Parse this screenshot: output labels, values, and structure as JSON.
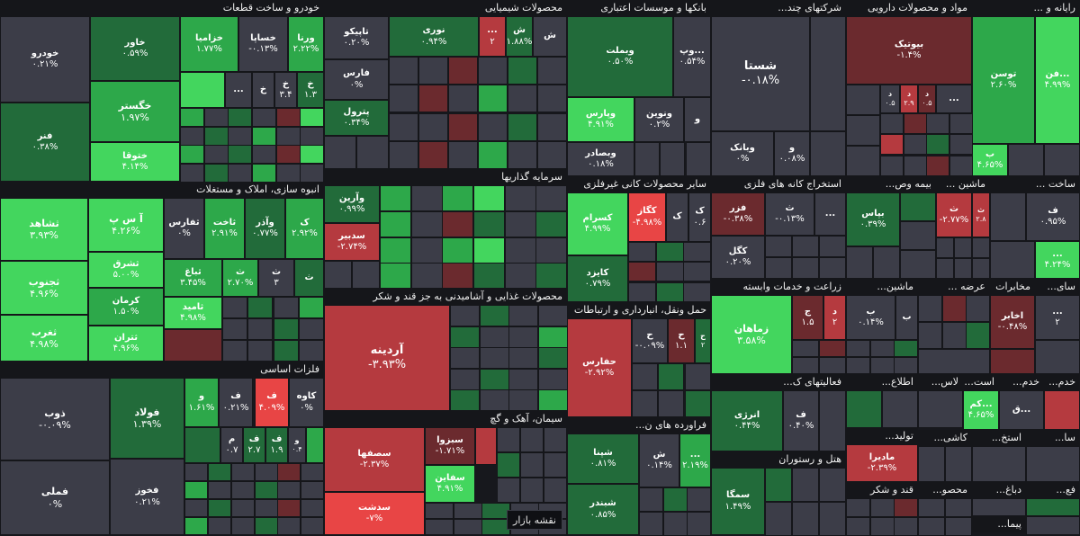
{
  "badge": "نقشه بازار",
  "palette": {
    "neutral": "#3c3d48",
    "up1": "#226b3a",
    "up2": "#2da84a",
    "up3": "#43d65e",
    "dn1": "#6b2a2e",
    "dn2": "#b53a3f",
    "dn3": "#e84545"
  },
  "chart_data": {
    "type": "treemap",
    "sectors": [
      {
        "name": "خودرو و ساخت قطعات",
        "tiles": [
          {
            "symbol": "خودرو",
            "change": "۰.۲۱%",
            "value": 0.21
          },
          {
            "symbol": "فنر",
            "change": "۰.۳۸%",
            "value": 0.38
          },
          {
            "symbol": "خاور",
            "change": "۰.۵۹%",
            "value": 0.59
          },
          {
            "symbol": "خگستر",
            "change": "۱.۹۷%",
            "value": 1.97
          },
          {
            "symbol": "ختوقا",
            "change": "۴.۱۴%",
            "value": 4.14
          },
          {
            "symbol": "خزامیا",
            "change": "۱.۷۷%",
            "value": 1.77
          },
          {
            "symbol": "خساپا",
            "change": "-۰.۱۳%",
            "value": -0.13
          },
          {
            "symbol": "ورنا",
            "change": "۲.۲۲%",
            "value": 2.22
          }
        ]
      },
      {
        "name": "انبوه سازی، املاک و مستغلات",
        "tiles": [
          {
            "symbol": "ثشاهد",
            "change": "۳.۹۳%",
            "value": 3.93
          },
          {
            "symbol": "ثجنوب",
            "change": "۴.۹۶%",
            "value": 4.96
          },
          {
            "symbol": "ثغرب",
            "change": "۴.۹۸%",
            "value": 4.98
          },
          {
            "symbol": "آ س پ",
            "change": "۴.۲۶%",
            "value": 4.26
          },
          {
            "symbol": "ثشرق",
            "change": "۵.۰۰%",
            "value": 5.0
          },
          {
            "symbol": "کرمان",
            "change": "۱.۵۰%",
            "value": 1.5
          },
          {
            "symbol": "ثتران",
            "change": "۴.۹۶%",
            "value": 4.96
          },
          {
            "symbol": "ثفارس",
            "change": "۰%",
            "value": 0
          },
          {
            "symbol": "ثاخت",
            "change": "۲.۹۱%",
            "value": 2.91
          },
          {
            "symbol": "وآذر",
            "change": "۰.۷۷%",
            "value": 0.77
          },
          {
            "symbol": "ثباغ",
            "change": "۳.۴۵%",
            "value": 3.45
          },
          {
            "symbol": "ثامید",
            "change": "۴.۹۸%",
            "value": 4.98
          }
        ]
      },
      {
        "name": "فلزات اساسی",
        "tiles": [
          {
            "symbol": "ذوب",
            "change": "-۰.۰۹%",
            "value": -0.09
          },
          {
            "symbol": "فملی",
            "change": "۰%",
            "value": 0
          },
          {
            "symbol": "فولاد",
            "change": "۱.۳۹%",
            "value": 1.39
          },
          {
            "symbol": "فخوز",
            "change": "۰.۲۱%",
            "value": 0.21
          },
          {
            "symbol": "کاوه",
            "change": "۰%",
            "value": 0
          }
        ]
      },
      {
        "name": "محصولات شیمیایی",
        "tiles": [
          {
            "symbol": "تاپیکو",
            "change": "۰.۲۰%",
            "value": 0.2
          },
          {
            "symbol": "فارس",
            "change": "۰%",
            "value": 0
          },
          {
            "symbol": "پترول",
            "change": "۰.۳۴%",
            "value": 0.34
          },
          {
            "symbol": "نوری",
            "change": "۰.۹۴%",
            "value": 0.94
          }
        ]
      },
      {
        "name": "سرمایه گذاریها",
        "tiles": [
          {
            "symbol": "وآرین",
            "change": "۰.۹۹%",
            "value": 0.99
          },
          {
            "symbol": "سدبیر",
            "change": "-۲.۷۴%",
            "value": -2.74
          }
        ]
      },
      {
        "name": "محصولات غذایی و آشامیدنی به جز قند و شکر",
        "tiles": [
          {
            "symbol": "آردینه",
            "change": "-۳.۹۳%",
            "value": -3.93
          }
        ]
      },
      {
        "name": "سیمان، آهک و گچ",
        "tiles": [
          {
            "symbol": "سصفها",
            "change": "-۲.۳۷%",
            "value": -2.37
          },
          {
            "symbol": "سدشت",
            "change": "-۷%",
            "value": -7
          },
          {
            "symbol": "سبزوا",
            "change": "-۱.۷۱%",
            "value": -1.71
          },
          {
            "symbol": "سفاین",
            "change": "۴.۹۱%",
            "value": 4.91
          }
        ]
      },
      {
        "name": "بانکها و موسسات اعتباری",
        "tiles": [
          {
            "symbol": "وبملت",
            "change": "۰.۵۰%",
            "value": 0.5
          },
          {
            "symbol": "وپارس",
            "change": "۴.۹۱%",
            "value": 4.91
          },
          {
            "symbol": "ونوین",
            "change": "۰.۲%",
            "value": 0.2
          },
          {
            "symbol": "وبصادر",
            "change": "۰.۱۸%",
            "value": 0.18
          }
        ]
      },
      {
        "name": "سایر محصولات کانی غیرفلزی",
        "tiles": [
          {
            "symbol": "کسرام",
            "change": "۴.۹۹%",
            "value": 4.99
          },
          {
            "symbol": "کگاز",
            "change": "-۴.۹۸%",
            "value": -4.98
          },
          {
            "symbol": "کایزد",
            "change": "۰.۷۹%",
            "value": 0.79
          }
        ]
      },
      {
        "name": "حمل ونقل، انبارداری و ارتباطات",
        "tiles": [
          {
            "symbol": "حفارس",
            "change": "-۲.۹۲%",
            "value": -2.92
          }
        ]
      },
      {
        "name": "فراورده های ن...",
        "tiles": [
          {
            "symbol": "شپنا",
            "change": "۰.۸۱%",
            "value": 0.81
          },
          {
            "symbol": "شبندر",
            "change": "۰.۸۵%",
            "value": 0.85
          }
        ]
      },
      {
        "name": "شرکتهای چند...",
        "tiles": [
          {
            "symbol": "شستا",
            "change": "-۰.۱۸%",
            "value": -0.18
          },
          {
            "symbol": "وبانک",
            "change": "۰%",
            "value": 0
          }
        ]
      },
      {
        "name": "مواد و محصولات دارویی",
        "tiles": [
          {
            "symbol": "بیوتیک",
            "change": "-۱.۴%",
            "value": -1.4
          }
        ]
      },
      {
        "name": "رایانه و ...",
        "tiles": [
          {
            "symbol": "توسن",
            "change": "۲.۶۰%",
            "value": 2.6
          },
          {
            "symbol": "فن...",
            "change": "۴.۹۹%",
            "value": 4.99
          }
        ]
      },
      {
        "name": "استخراج کانه های فلزی",
        "tiles": [
          {
            "symbol": "فزر",
            "change": "-۰.۳۸%",
            "value": -0.38
          },
          {
            "symbol": "کگل",
            "change": "۰.۲۰%",
            "value": 0.2
          }
        ]
      },
      {
        "name": "بیمه وص...",
        "tiles": [
          {
            "symbol": "بپاس",
            "change": "۰.۳۹%",
            "value": 0.39
          }
        ]
      },
      {
        "name": "زراعت و خدمات وابسته",
        "tiles": [
          {
            "symbol": "زماهان",
            "change": "۳.۵۸%",
            "value": 3.58
          }
        ]
      },
      {
        "name": "فعالیتهای ک...",
        "tiles": [
          {
            "symbol": "انرژی",
            "change": "۰.۴۴%",
            "value": 0.44
          }
        ]
      },
      {
        "name": "هتل و رستوران",
        "tiles": [
          {
            "symbol": "سمگا",
            "change": "۱.۴۹%",
            "value": 1.49
          }
        ]
      },
      {
        "name": "تولید...",
        "tiles": [
          {
            "symbol": "مادیرا",
            "change": "-۲.۳۹%",
            "value": -2.39
          }
        ]
      },
      {
        "name": "مخابرات",
        "tiles": [
          {
            "symbol": "اخابر",
            "change": "-۰.۴۸%",
            "value": -0.48
          }
        ]
      }
    ]
  },
  "headers": [
    "خودرو و ساخت قطعات",
    "انبوه سازی، املاک و مستغلات",
    "فلزات اساسی",
    "محصولات شیمیایی",
    "سرمایه گذاریها",
    "محصولات غذایی و آشامیدنی به جز قند و شکر",
    "سیمان، آهک و گچ",
    "بانکها و موسسات اعتباری",
    "سایر محصولات کانی غیرفلزی",
    "حمل ونقل، انبارداری و ارتباطات",
    "فراورده های ن...",
    "شرکتهای چند...",
    "مواد و محصولات دارویی",
    "رایانه و ...",
    "ساخت ...",
    "ماشین ...",
    "بیمه وص...",
    "استخراج کانه های فلزی",
    "زراعت و خدمات وابسته",
    "ماشین...",
    "عرضه ...",
    "مخابرات",
    "سای...",
    "فعالیتهای ک...",
    "اطلاع...",
    "لاس...",
    "است...",
    "خدم...",
    "تولید...",
    "کاشی...",
    "استخ...",
    "سا...",
    "هتل و رستوران",
    "قند و شکر",
    "دباغ...",
    "محصو...",
    "فع...",
    "پیما..."
  ],
  "small_labels": {
    "dots": "...",
    "kha": "خ",
    "v": "و",
    "f": "ف",
    "m": "م",
    "k": "ک",
    "d": "د",
    "j": "ج",
    "b": "ب",
    "sh": "ش",
    "ch": "ح",
    "t": "ث",
    "s": "س",
    "n": "ن",
    "kam": "کم...",
    "vap": "وپ...",
    "ghe": "ق...",
    "to": "ث..."
  },
  "small_values": {
    "a": "۴.۲۴%",
    "b": "۰.۵۴%",
    "c": "-۰.۰۹%",
    "d": "۰.۰۸%",
    "e": "۰.۱۴%",
    "f": "۲.۱۹%",
    "g": "-۰.۱۳%",
    "h": "۰.۹۹%",
    "i": "۴.۶۵%",
    "j": "۰.۴۰%",
    "k": "۰.۹۵%",
    "l": "-۲.۷۷%",
    "m": "۲.۷۰%",
    "n": "۲.۹۲%",
    "o": "۱.۶۱%",
    "p": "۰.۲۱%",
    "q": "۴.۰۹%",
    "r": "۱.۸۸%",
    "s": "۰.۱۴%",
    "t": "-۰.۹۹%",
    "u": "۰.۲۶%",
    "v": "۰.۵۲%",
    "w": "۱.۱",
    "x": "۲.۸",
    "y": "۲.۹",
    "z": "۱.۵",
    "aa": "۰.۵",
    "ab": "۱.۹",
    "ac": "۰.۷",
    "ad": "۳.۴",
    "ae": "۱.۳",
    "af": "۰.۴",
    "ag": "۳",
    "ah": "۲",
    "ai": "۰.۶",
    "aj": "۲.۷"
  }
}
